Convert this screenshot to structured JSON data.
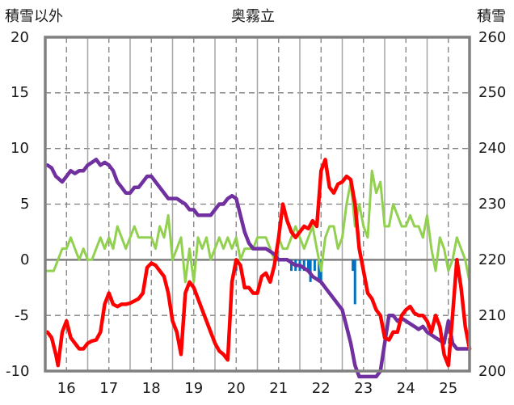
{
  "chart_data": {
    "type": "line",
    "title": "奥霧立",
    "left_axis_label": "積雪以外",
    "right_axis_label": "積雪",
    "ylim": [
      -10,
      20
    ],
    "y_ticks": [
      20,
      15,
      10,
      5,
      0,
      -5,
      -10
    ],
    "y2lim": [
      200,
      260
    ],
    "y2_ticks": [
      260,
      250,
      240,
      230,
      220,
      210,
      200
    ],
    "xlim": [
      15.5,
      25.5
    ],
    "x_ticks": [
      16,
      17,
      18,
      19,
      20,
      21,
      22,
      23,
      24,
      25
    ],
    "grid": true,
    "series": [
      {
        "key": "red",
        "color": "#ff0000",
        "axis": "left",
        "x": [
          15.55,
          15.65,
          15.75,
          15.8,
          15.9,
          16.0,
          16.1,
          16.2,
          16.3,
          16.4,
          16.5,
          16.6,
          16.7,
          16.8,
          16.9,
          17.0,
          17.1,
          17.2,
          17.3,
          17.4,
          17.5,
          17.6,
          17.7,
          17.8,
          17.9,
          18.0,
          18.1,
          18.2,
          18.3,
          18.4,
          18.5,
          18.6,
          18.7,
          18.8,
          18.9,
          19.0,
          19.1,
          19.2,
          19.3,
          19.4,
          19.5,
          19.6,
          19.7,
          19.8,
          19.9,
          20.0,
          20.1,
          20.2,
          20.3,
          20.4,
          20.5,
          20.6,
          20.7,
          20.8,
          20.9,
          21.0,
          21.1,
          21.2,
          21.3,
          21.4,
          21.5,
          21.6,
          21.7,
          21.8,
          21.9,
          22.0,
          22.1,
          22.2,
          22.3,
          22.4,
          22.5,
          22.6,
          22.7,
          22.8,
          22.9,
          23.0,
          23.1,
          23.2,
          23.3,
          23.4,
          23.5,
          23.6,
          23.7,
          23.8,
          23.9,
          24.0,
          24.1,
          24.2,
          24.3,
          24.4,
          24.5,
          24.6,
          24.7,
          24.8,
          24.9,
          25.0,
          25.1,
          25.2,
          25.3,
          25.4,
          25.5
        ],
        "y": [
          -6.5,
          -7,
          -8.5,
          -9.5,
          -6.5,
          -5.5,
          -7,
          -7.5,
          -8,
          -8,
          -7.5,
          -7.3,
          -7.2,
          -6.5,
          -4,
          -3,
          -4,
          -4.2,
          -4,
          -4,
          -3.9,
          -3.7,
          -3.5,
          -3,
          -0.7,
          -0.3,
          -0.5,
          -1,
          -1.5,
          -3,
          -5.5,
          -6.5,
          -8.5,
          -3,
          -2,
          -2.5,
          -3.5,
          -4.5,
          -5.5,
          -6.5,
          -7.5,
          -8.2,
          -8.5,
          -9,
          -2,
          0,
          -0.5,
          -2.5,
          -2.5,
          -3,
          -3,
          -1.5,
          -1.2,
          -2,
          -0.5,
          2,
          5,
          3.5,
          2.5,
          2,
          2.5,
          3,
          2.8,
          3.5,
          3,
          8,
          9,
          6.5,
          6,
          6.8,
          7,
          7.5,
          7.2,
          5,
          1,
          -1,
          -3,
          -3.5,
          -4.5,
          -5,
          -7,
          -7.2,
          -6.5,
          -6.5,
          -5,
          -4.5,
          -4.2,
          -4.8,
          -5,
          -5,
          -5.5,
          -6.5,
          -5,
          -6,
          -8.5,
          -9.5,
          -5,
          0,
          -2.5,
          -6,
          -8
        ],
        "width": 4.5
      },
      {
        "key": "purple",
        "color": "#7030a0",
        "axis": "right",
        "x": [
          15.55,
          15.65,
          15.75,
          15.9,
          16.0,
          16.1,
          16.2,
          16.3,
          16.4,
          16.5,
          16.6,
          16.7,
          16.8,
          16.9,
          17.0,
          17.1,
          17.2,
          17.3,
          17.4,
          17.5,
          17.6,
          17.7,
          17.8,
          17.9,
          18.0,
          18.1,
          18.2,
          18.3,
          18.4,
          18.5,
          18.6,
          18.7,
          18.8,
          18.9,
          19.0,
          19.1,
          19.2,
          19.3,
          19.4,
          19.5,
          19.6,
          19.7,
          19.8,
          19.9,
          20.0,
          20.1,
          20.2,
          20.3,
          20.4,
          20.5,
          20.6,
          20.7,
          20.8,
          20.9,
          21.0,
          21.1,
          21.2,
          21.3,
          21.4,
          21.5,
          21.6,
          21.7,
          21.8,
          21.9,
          22.0,
          22.1,
          22.2,
          22.3,
          22.4,
          22.5,
          22.6,
          22.7,
          22.8,
          22.9,
          23.0,
          23.1,
          23.2,
          23.3,
          23.4,
          23.5,
          23.6,
          23.7,
          23.8,
          23.9,
          24.0,
          24.1,
          24.2,
          24.3,
          24.4,
          24.5,
          24.6,
          24.7,
          24.8,
          24.9,
          25.0,
          25.1,
          25.2,
          25.3,
          25.4,
          25.5
        ],
        "y": [
          237,
          236.5,
          235,
          234,
          235,
          236,
          235.5,
          236,
          236,
          237,
          237.5,
          238,
          237,
          237.5,
          237,
          236,
          234,
          233,
          232,
          232,
          233,
          233,
          234,
          235,
          235,
          234,
          233,
          232,
          231,
          231,
          231,
          230.5,
          230,
          229,
          229,
          228,
          228,
          228,
          228,
          229,
          230,
          230,
          231,
          231.5,
          231,
          228,
          225,
          223,
          222,
          222,
          222,
          222,
          221.5,
          221,
          220,
          220,
          220,
          219.5,
          219,
          219,
          218.5,
          218,
          217,
          216.5,
          216,
          215,
          214,
          213,
          212,
          211,
          208,
          205,
          201,
          199,
          199,
          199,
          199,
          199,
          200,
          205,
          210,
          210,
          209,
          209.5,
          209,
          208.5,
          208,
          207.5,
          208,
          207,
          206.5,
          206,
          205.5,
          205,
          209,
          205,
          204,
          204,
          204,
          204
        ],
        "width": 4.5
      },
      {
        "key": "green",
        "color": "#92d050",
        "axis": "left",
        "x": [
          15.55,
          15.7,
          15.8,
          15.9,
          16.0,
          16.1,
          16.2,
          16.3,
          16.4,
          16.5,
          16.6,
          16.7,
          16.8,
          16.9,
          17.0,
          17.1,
          17.2,
          17.3,
          17.4,
          17.5,
          17.6,
          17.7,
          17.8,
          17.9,
          18.0,
          18.1,
          18.2,
          18.3,
          18.4,
          18.5,
          18.6,
          18.7,
          18.8,
          18.9,
          19.0,
          19.1,
          19.2,
          19.3,
          19.4,
          19.5,
          19.6,
          19.7,
          19.8,
          19.9,
          20.0,
          20.1,
          20.2,
          20.3,
          20.4,
          20.5,
          20.6,
          20.7,
          20.8,
          20.9,
          21.0,
          21.1,
          21.2,
          21.3,
          21.4,
          21.5,
          21.6,
          21.7,
          21.8,
          21.9,
          22.0,
          22.1,
          22.2,
          22.3,
          22.4,
          22.5,
          22.6,
          22.7,
          22.8,
          22.9,
          23.0,
          23.1,
          23.2,
          23.3,
          23.4,
          23.5,
          23.6,
          23.7,
          23.8,
          23.9,
          24.0,
          24.1,
          24.2,
          24.3,
          24.4,
          24.5,
          24.6,
          24.7,
          24.8,
          24.9,
          25.0,
          25.1,
          25.2,
          25.3,
          25.4,
          25.5
        ],
        "y": [
          -1,
          -1,
          0,
          1,
          1,
          2,
          1,
          0,
          1,
          0,
          0,
          1,
          2,
          1,
          2,
          1,
          3,
          2,
          1,
          2,
          3,
          2,
          2,
          2,
          2,
          1,
          3,
          2,
          4,
          0,
          1,
          2,
          -2,
          1,
          -2,
          2,
          1,
          2,
          0,
          1,
          2,
          1,
          2,
          1,
          2,
          0,
          1,
          1,
          1,
          2,
          2,
          2,
          1,
          0,
          2,
          1,
          1,
          2,
          3,
          2,
          1,
          2,
          3,
          1,
          -1,
          2,
          3,
          3,
          1,
          2,
          5,
          7,
          3,
          5,
          3,
          2,
          8,
          6,
          7,
          3,
          3,
          5,
          4,
          3,
          3,
          4,
          3,
          3,
          2,
          4,
          1,
          -1,
          2,
          1,
          -1,
          0,
          2,
          1,
          0,
          -2
        ],
        "width": 3
      },
      {
        "key": "blue",
        "color": "#0070c0",
        "axis": "left",
        "kind": "bars",
        "x": [
          20.0,
          21.3,
          21.4,
          21.5,
          21.6,
          21.7,
          21.75,
          21.85,
          21.95,
          22.0,
          22.75,
          22.8
        ],
        "y": [
          -1,
          -1,
          -1,
          -1,
          -1,
          -1,
          -2,
          -1,
          -2,
          -2,
          -1,
          -4
        ],
        "width": 3
      }
    ]
  }
}
